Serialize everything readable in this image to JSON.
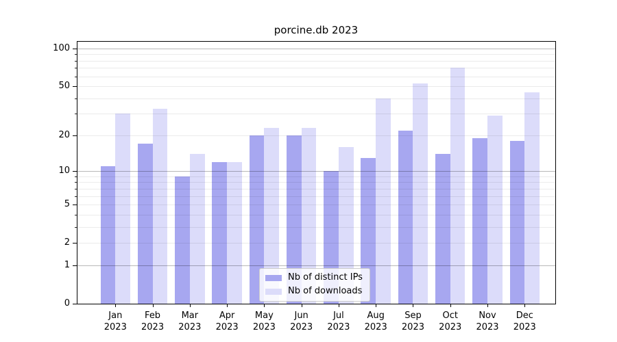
{
  "chart_data": {
    "type": "bar",
    "title": "porcine.db 2023",
    "categories": [
      "Jan",
      "Feb",
      "Mar",
      "Apr",
      "May",
      "Jun",
      "Jul",
      "Aug",
      "Sep",
      "Oct",
      "Nov",
      "Dec"
    ],
    "x_year_label": "2023",
    "series": [
      {
        "name": "Nb of distinct IPs",
        "color": "#a7a7f0",
        "values": [
          11,
          17,
          9,
          12,
          20,
          20,
          10,
          13,
          22,
          14,
          19,
          18
        ]
      },
      {
        "name": "Nb of downloads",
        "color": "#dcdcfa",
        "values": [
          30,
          33,
          14,
          12,
          23,
          23,
          16,
          40,
          53,
          70,
          29,
          45
        ]
      }
    ],
    "yscale": "quasi-log (log1p)",
    "yticks": [
      100,
      50,
      20,
      10,
      5,
      2,
      1,
      0
    ],
    "minor_yticks": [
      2,
      3,
      4,
      5,
      6,
      7,
      8,
      9,
      20,
      30,
      40,
      50,
      60,
      70,
      80,
      90
    ],
    "decade_lines": [
      1,
      10,
      100
    ],
    "ylim": [
      0,
      115
    ],
    "grid": "horizontal",
    "legend_position": "lower center"
  }
}
